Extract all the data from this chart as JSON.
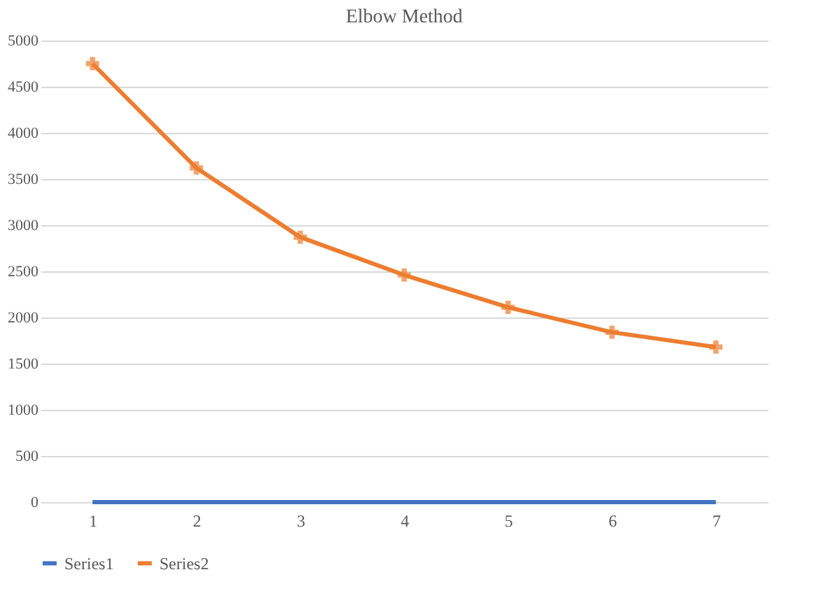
{
  "chart_data": {
    "type": "line",
    "title": "Elbow Method",
    "categories": [
      "1",
      "2",
      "3",
      "4",
      "5",
      "6",
      "7"
    ],
    "series": [
      {
        "name": "Series1",
        "color": "#4472c4",
        "values": [
          0,
          0,
          0,
          0,
          0,
          0,
          0
        ]
      },
      {
        "name": "Series2",
        "color": "#ed7d31",
        "values": [
          4750,
          3620,
          2870,
          2460,
          2110,
          1840,
          1680
        ],
        "marker": "cross"
      }
    ],
    "ylim": [
      0,
      5000
    ],
    "yticks": [
      0,
      500,
      1000,
      1500,
      2000,
      2500,
      3000,
      3500,
      4000,
      4500,
      5000
    ],
    "grid": "y",
    "legend": "bottom"
  }
}
